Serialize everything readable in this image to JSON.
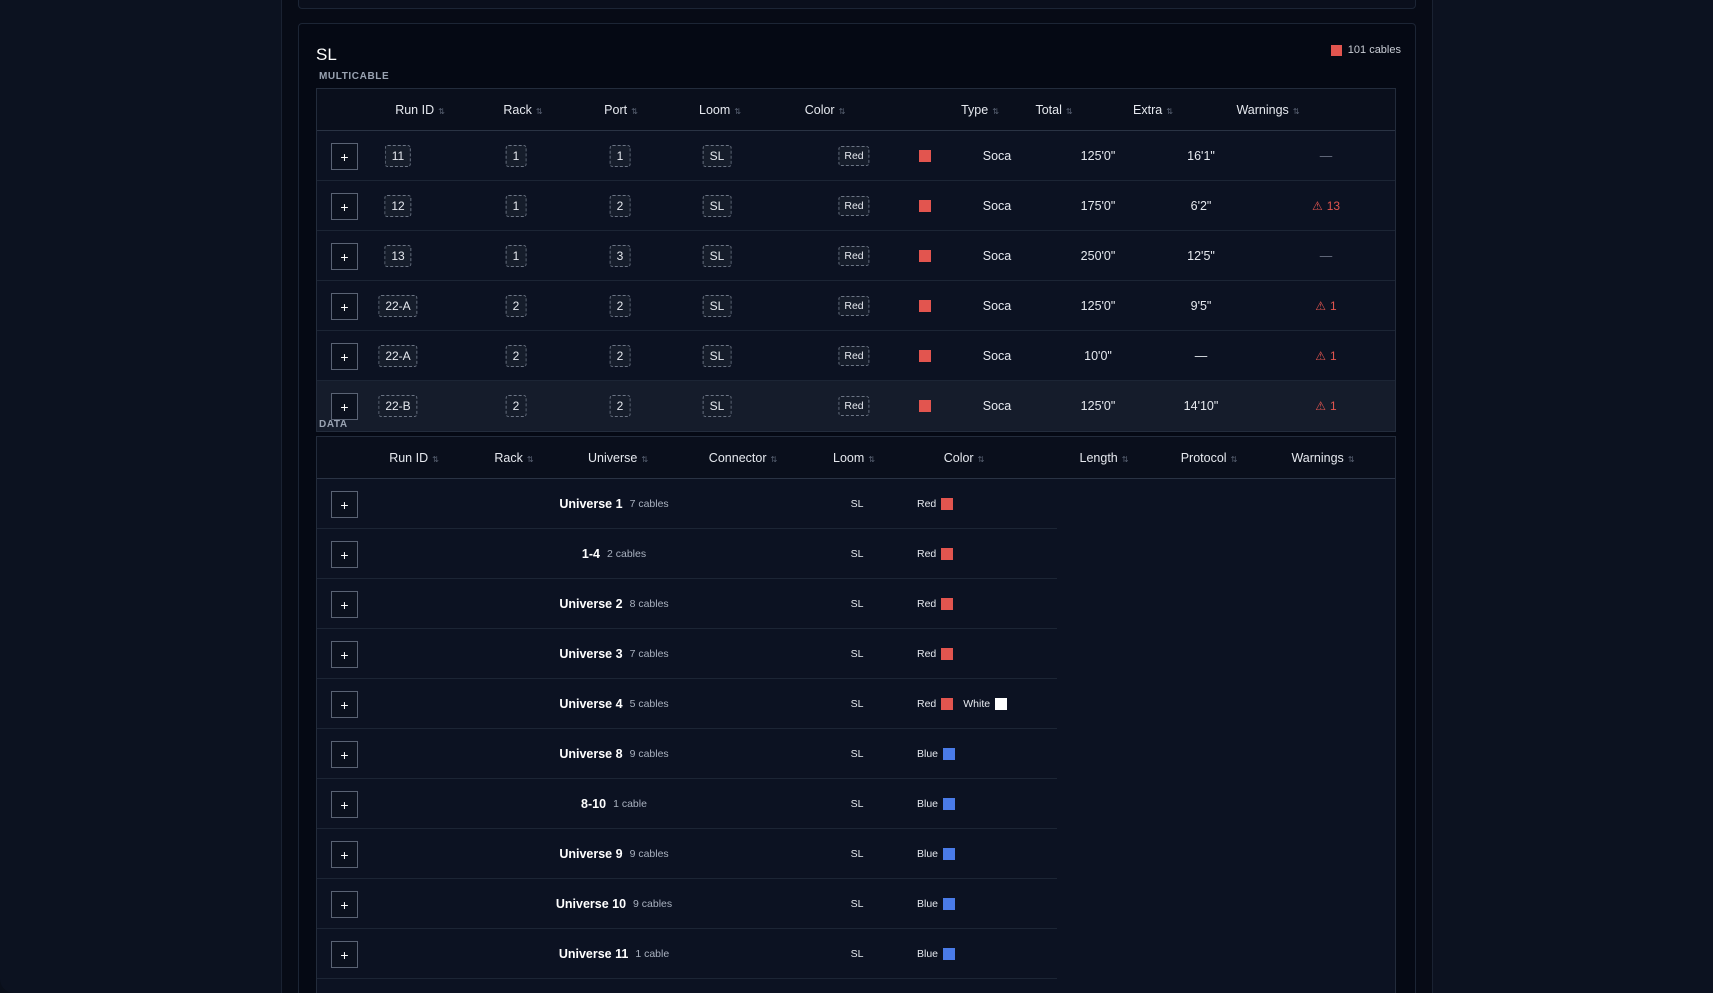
{
  "group": {
    "title": "SL",
    "count_label": "101 cables",
    "color": "#e2554f"
  },
  "multicable": {
    "section_label": "MULTICABLE",
    "headers": [
      "Run ID",
      "Rack",
      "Port",
      "Loom",
      "Color",
      "Type",
      "Total",
      "Extra",
      "Warnings"
    ],
    "rows": [
      {
        "run_id": "11",
        "rack": "1",
        "port": "1",
        "loom": "SL",
        "color_label": "Red",
        "color_hex": "#e2554f",
        "type": "Soca",
        "total": "125'0\"",
        "extra": "16'1\"",
        "warnings": "—",
        "has_warning": false
      },
      {
        "run_id": "12",
        "rack": "1",
        "port": "2",
        "loom": "SL",
        "color_label": "Red",
        "color_hex": "#e2554f",
        "type": "Soca",
        "total": "175'0\"",
        "extra": "6'2\"",
        "warnings": "13",
        "has_warning": true
      },
      {
        "run_id": "13",
        "rack": "1",
        "port": "3",
        "loom": "SL",
        "color_label": "Red",
        "color_hex": "#e2554f",
        "type": "Soca",
        "total": "250'0\"",
        "extra": "12'5\"",
        "warnings": "—",
        "has_warning": false
      },
      {
        "run_id": "22-A",
        "rack": "2",
        "port": "2",
        "loom": "SL",
        "color_label": "Red",
        "color_hex": "#e2554f",
        "type": "Soca",
        "total": "125'0\"",
        "extra": "9'5\"",
        "warnings": "1",
        "has_warning": true
      },
      {
        "run_id": "22-A",
        "rack": "2",
        "port": "2",
        "loom": "SL",
        "color_label": "Red",
        "color_hex": "#e2554f",
        "type": "Soca",
        "total": "10'0\"",
        "extra": "—",
        "warnings": "1",
        "has_warning": true
      },
      {
        "run_id": "22-B",
        "rack": "2",
        "port": "2",
        "loom": "SL",
        "color_label": "Red",
        "color_hex": "#e2554f",
        "type": "Soca",
        "total": "125'0\"",
        "extra": "14'10\"",
        "warnings": "1",
        "has_warning": true
      }
    ]
  },
  "data": {
    "section_label": "DATA",
    "headers": [
      "Run ID",
      "Rack",
      "Universe",
      "Connector",
      "Loom",
      "Color",
      "Length",
      "Protocol",
      "Warnings"
    ],
    "rows": [
      {
        "name": "Universe 1",
        "count": "7 cables",
        "loom": "SL",
        "colors": [
          {
            "label": "Red",
            "hex": "#e2554f"
          }
        ]
      },
      {
        "name": "1-4",
        "count": "2 cables",
        "loom": "SL",
        "colors": [
          {
            "label": "Red",
            "hex": "#e2554f"
          }
        ]
      },
      {
        "name": "Universe 2",
        "count": "8 cables",
        "loom": "SL",
        "colors": [
          {
            "label": "Red",
            "hex": "#e2554f"
          }
        ]
      },
      {
        "name": "Universe 3",
        "count": "7 cables",
        "loom": "SL",
        "colors": [
          {
            "label": "Red",
            "hex": "#e2554f"
          }
        ]
      },
      {
        "name": "Universe 4",
        "count": "5 cables",
        "loom": "SL",
        "colors": [
          {
            "label": "Red",
            "hex": "#e2554f"
          },
          {
            "label": "White",
            "hex": "#ffffff"
          }
        ]
      },
      {
        "name": "Universe 8",
        "count": "9 cables",
        "loom": "SL",
        "colors": [
          {
            "label": "Blue",
            "hex": "#4a7be8"
          }
        ]
      },
      {
        "name": "8-10",
        "count": "1 cable",
        "loom": "SL",
        "colors": [
          {
            "label": "Blue",
            "hex": "#4a7be8"
          }
        ]
      },
      {
        "name": "Universe 9",
        "count": "9 cables",
        "loom": "SL",
        "colors": [
          {
            "label": "Blue",
            "hex": "#4a7be8"
          }
        ]
      },
      {
        "name": "Universe 10",
        "count": "9 cables",
        "loom": "SL",
        "colors": [
          {
            "label": "Blue",
            "hex": "#4a7be8"
          }
        ]
      },
      {
        "name": "Universe 11",
        "count": "1 cable",
        "loom": "SL",
        "colors": [
          {
            "label": "Blue",
            "hex": "#4a7be8"
          }
        ]
      }
    ]
  },
  "icons": {
    "expand": "+",
    "sort": "⇅",
    "warning": "⚠"
  }
}
